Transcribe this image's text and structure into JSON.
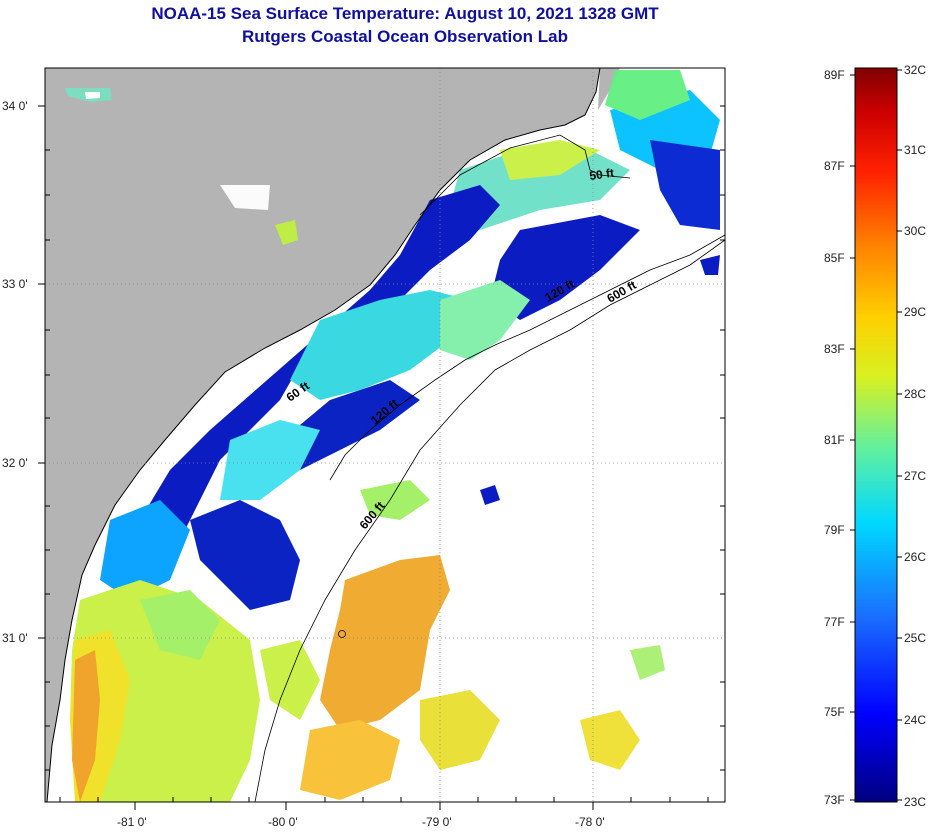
{
  "title": "NOAA-15 Sea Surface Temperature:  August 10, 2021 1328 GMT",
  "subtitle": "Rutgers Coastal Ocean Observation Lab",
  "map": {
    "lat_labels": [
      "34 0'",
      "33 0'",
      "32 0'",
      "31 0'"
    ],
    "lon_labels": [
      "-81 0'",
      "-80 0'",
      "-79 0'",
      "-78 0'"
    ],
    "isobaths": [
      "50 ft",
      "120 ft",
      "600 ft",
      "600 ft",
      "60 ft",
      "120 ft"
    ],
    "colors": {
      "land": "#b4b4b4",
      "ocean_nodata": "#ffffff"
    }
  },
  "colorbar": {
    "fahrenheit": [
      "89F",
      "87F",
      "85F",
      "83F",
      "81F",
      "79F",
      "77F",
      "75F",
      "73F"
    ],
    "celsius": [
      "32C",
      "31C",
      "30C",
      "29C",
      "28C",
      "27C",
      "26C",
      "25C",
      "24C",
      "23C"
    ]
  }
}
